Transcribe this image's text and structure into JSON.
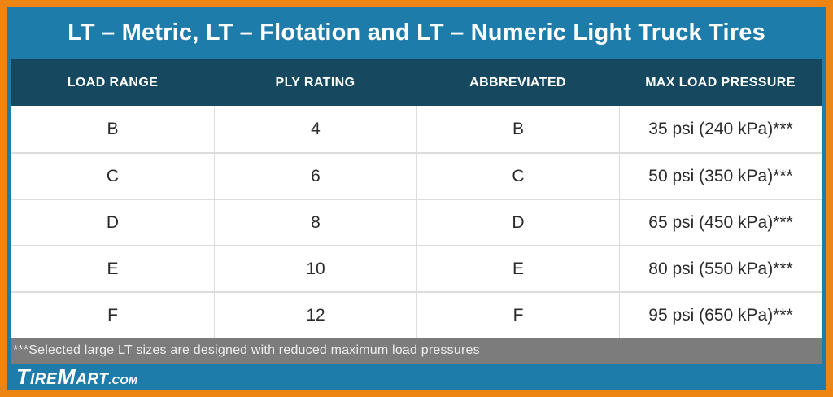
{
  "title": "LT – Metric, LT – Flotation and LT – Numeric Light Truck Tires",
  "chart_data": {
    "type": "table",
    "title": "LT – Metric, LT – Flotation and LT – Numeric Light Truck Tires",
    "columns": [
      "LOAD RANGE",
      "PLY RATING",
      "ABBREVIATED",
      "MAX LOAD PRESSURE"
    ],
    "rows": [
      [
        "B",
        "4",
        "B",
        "35 psi (240 kPa)***"
      ],
      [
        "C",
        "6",
        "C",
        "50 psi (350 kPa)***"
      ],
      [
        "D",
        "8",
        "D",
        "65 psi (450 kPa)***"
      ],
      [
        "E",
        "10",
        "E",
        "80 psi (550 kPa)***"
      ],
      [
        "F",
        "12",
        "F",
        "95 psi (650 kPa)***"
      ]
    ],
    "footnote": "***Selected large LT sizes are designed with reduced maximum load pressures"
  },
  "footnote": "***Selected large LT sizes are designed with reduced maximum load pressures",
  "brand": {
    "t1": "T",
    "s1": "IRE",
    "t2": "M",
    "s2": "ART",
    "tld": ".COM"
  },
  "colors": {
    "frame_orange": "#EE8412",
    "panel_blue": "#1E7CAB",
    "header_teal": "#16495F",
    "row_divider": "#DCDCDC",
    "footnote_gray": "#7C7C7C",
    "cell_text": "#2B2B2B"
  }
}
